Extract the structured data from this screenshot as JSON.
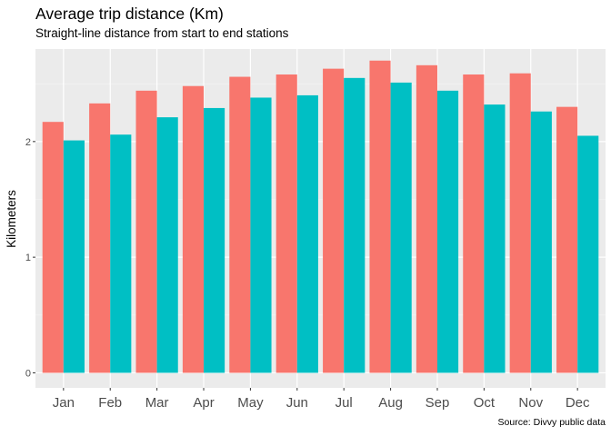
{
  "chart_data": {
    "type": "bar",
    "title": "Average trip distance (Km)",
    "subtitle": "Straight-line distance from start to end stations",
    "caption": "Source: Divvy public data",
    "xlabel": "",
    "ylabel": "Kilometers",
    "categories": [
      "Jan",
      "Feb",
      "Mar",
      "Apr",
      "May",
      "Jun",
      "Jul",
      "Aug",
      "Sep",
      "Oct",
      "Nov",
      "Dec"
    ],
    "series": [
      {
        "color": "#F8766D",
        "values": [
          2.17,
          2.33,
          2.44,
          2.48,
          2.56,
          2.58,
          2.63,
          2.7,
          2.66,
          2.58,
          2.59,
          2.3
        ]
      },
      {
        "color": "#00BFC4",
        "values": [
          2.01,
          2.06,
          2.21,
          2.29,
          2.38,
          2.4,
          2.55,
          2.51,
          2.44,
          2.32,
          2.26,
          2.05
        ]
      }
    ],
    "yticks": [
      0,
      1,
      2
    ],
    "ylim": [
      -0.13,
      2.8
    ],
    "grid": true,
    "legend": "none"
  }
}
